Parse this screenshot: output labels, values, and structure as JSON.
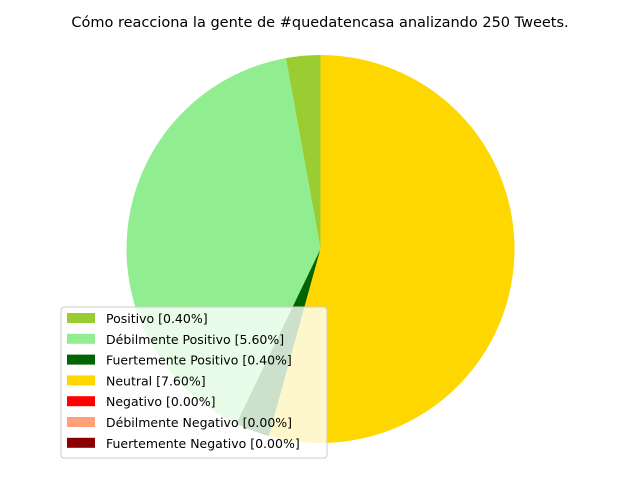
{
  "chart_data": {
    "type": "pie",
    "title": "Cómo reacciona la gente de #quedatencasa analizando 250 Tweets.",
    "start_angle_deg": 90,
    "direction": "counterclockwise",
    "legend_placement": "lower-left",
    "slices": [
      {
        "label": "Positivo [0.40%]",
        "value": 0.4,
        "color": "#9acd32"
      },
      {
        "label": "Débilmente Positivo [5.60%]",
        "value": 5.6,
        "color": "#90ee90"
      },
      {
        "label": "Fuertemente Positivo [0.40%]",
        "value": 0.4,
        "color": "#006400"
      },
      {
        "label": "Neutral [7.60%]",
        "value": 7.6,
        "color": "#ffd700"
      },
      {
        "label": "Negativo [0.00%]",
        "value": 0.0,
        "color": "#ff0000"
      },
      {
        "label": "Débilmente Negativo [0.00%]",
        "value": 0.0,
        "color": "#ffa07a"
      },
      {
        "label": "Fuertemente Negativo [0.00%]",
        "value": 0.0,
        "color": "#8b0000"
      }
    ]
  }
}
